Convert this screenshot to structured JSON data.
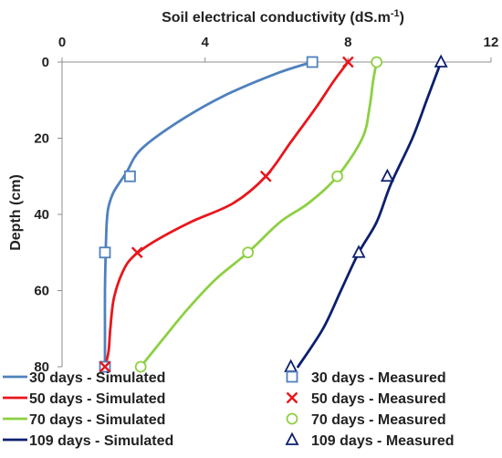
{
  "chart_data": {
    "type": "line",
    "xlabel": "Soil electrical conductivity (dS.m",
    "xlabel_sup": "-1",
    "xlabel_close": ")",
    "ylabel": "Depth (cm)",
    "xlim": [
      0,
      12
    ],
    "ylim": [
      80,
      0
    ],
    "x_ticks": [
      "0",
      "4",
      "8",
      "12"
    ],
    "y_ticks": [
      "0",
      "20",
      "40",
      "60",
      "80"
    ],
    "x_axis_position": "top",
    "y_axis_inverted": true,
    "grid": false,
    "legend_position": "bottom",
    "series": [
      {
        "name": "30 days - Simulated",
        "kind": "line",
        "color": "#4f81bd",
        "points": [
          [
            7.0,
            0
          ],
          [
            6.0,
            3
          ],
          [
            4.5,
            9
          ],
          [
            3.2,
            16
          ],
          [
            2.2,
            23
          ],
          [
            1.8,
            29
          ],
          [
            1.45,
            34
          ],
          [
            1.3,
            38
          ],
          [
            1.25,
            42
          ],
          [
            1.22,
            50
          ],
          [
            1.2,
            60
          ],
          [
            1.2,
            70
          ],
          [
            1.2,
            80
          ]
        ]
      },
      {
        "name": "50 days - Simulated",
        "kind": "line",
        "color": "#e8161c",
        "points": [
          [
            8.0,
            0
          ],
          [
            7.6,
            5
          ],
          [
            7.1,
            12
          ],
          [
            6.4,
            21
          ],
          [
            5.7,
            30
          ],
          [
            4.8,
            37
          ],
          [
            3.6,
            42
          ],
          [
            2.6,
            47
          ],
          [
            2.0,
            51
          ],
          [
            1.7,
            55
          ],
          [
            1.45,
            62
          ],
          [
            1.35,
            70
          ],
          [
            1.3,
            76
          ],
          [
            1.2,
            80
          ]
        ]
      },
      {
        "name": "70 days - Simulated",
        "kind": "line",
        "color": "#8dd042",
        "points": [
          [
            8.8,
            0
          ],
          [
            8.7,
            5
          ],
          [
            8.6,
            12
          ],
          [
            8.4,
            20
          ],
          [
            7.7,
            30
          ],
          [
            6.9,
            37
          ],
          [
            6.1,
            42
          ],
          [
            5.2,
            50
          ],
          [
            4.3,
            57
          ],
          [
            3.5,
            65
          ],
          [
            2.8,
            73
          ],
          [
            2.2,
            80
          ]
        ]
      },
      {
        "name": "109 days - Simulated",
        "kind": "line",
        "color": "#0c1f6e",
        "points": [
          [
            10.6,
            0
          ],
          [
            10.2,
            10
          ],
          [
            9.8,
            20
          ],
          [
            9.2,
            32
          ],
          [
            8.8,
            42
          ],
          [
            8.3,
            50
          ],
          [
            7.8,
            60
          ],
          [
            7.3,
            70
          ],
          [
            6.6,
            80
          ]
        ]
      },
      {
        "name": "30 days - Measured",
        "kind": "marker",
        "marker": "square",
        "color": "#4f81bd",
        "points": [
          [
            7.0,
            0
          ],
          [
            1.9,
            30
          ],
          [
            1.2,
            50
          ],
          [
            1.2,
            80
          ]
        ]
      },
      {
        "name": "50 days - Measured",
        "kind": "marker",
        "marker": "x",
        "color": "#e8161c",
        "points": [
          [
            8.0,
            0
          ],
          [
            5.7,
            30
          ],
          [
            2.1,
            50
          ],
          [
            1.2,
            80
          ]
        ]
      },
      {
        "name": "70 days - Measured",
        "kind": "marker",
        "marker": "circle",
        "color": "#8dd042",
        "points": [
          [
            8.8,
            0
          ],
          [
            7.7,
            30
          ],
          [
            5.2,
            50
          ],
          [
            2.2,
            80
          ]
        ]
      },
      {
        "name": "109 days - Measured",
        "kind": "marker",
        "marker": "triangle",
        "color": "#0c1f6e",
        "points": [
          [
            10.6,
            0
          ],
          [
            9.1,
            30
          ],
          [
            8.3,
            50
          ],
          [
            6.4,
            80
          ]
        ]
      }
    ],
    "legend": [
      {
        "label": "30 days - Simulated",
        "kind": "line",
        "color": "#4f81bd"
      },
      {
        "label": "30 days - Measured",
        "kind": "marker",
        "marker": "square",
        "color": "#4f81bd"
      },
      {
        "label": "50 days - Simulated",
        "kind": "line",
        "color": "#e8161c"
      },
      {
        "label": "50 days - Measured",
        "kind": "marker",
        "marker": "x",
        "color": "#e8161c"
      },
      {
        "label": "70 days - Simulated",
        "kind": "line",
        "color": "#8dd042"
      },
      {
        "label": "70 days - Measured",
        "kind": "marker",
        "marker": "circle",
        "color": "#8dd042"
      },
      {
        "label": "109 days - Simulated",
        "kind": "line",
        "color": "#0c1f6e"
      },
      {
        "label": "109 days - Measured",
        "kind": "marker",
        "marker": "triangle",
        "color": "#0c1f6e"
      }
    ]
  }
}
